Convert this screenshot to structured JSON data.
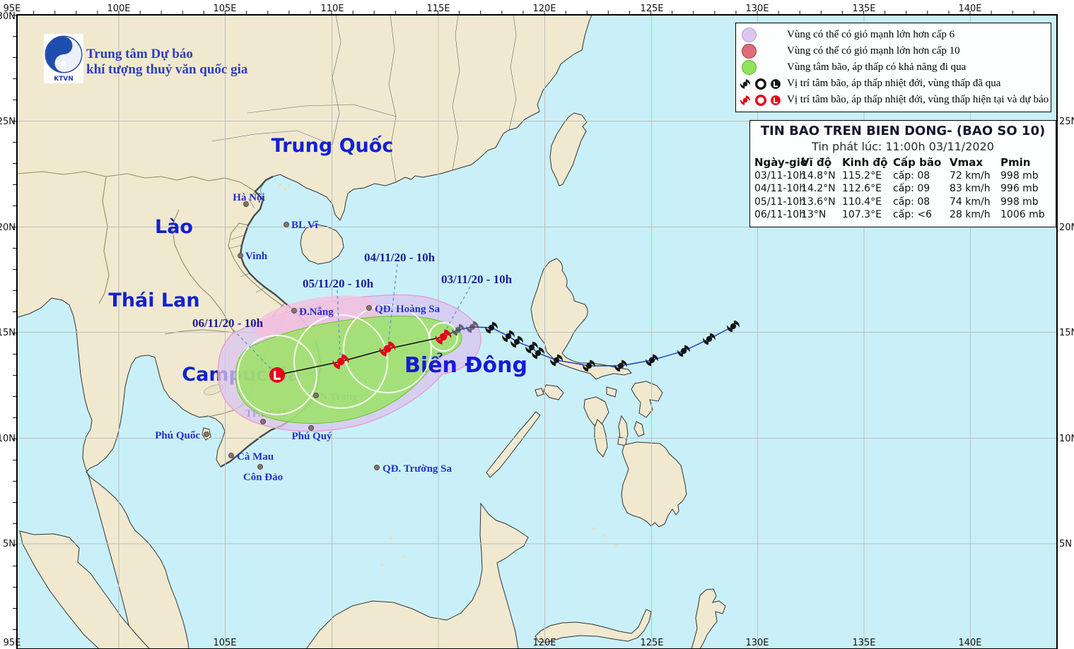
{
  "header": {
    "logo_caption": "KTVN",
    "line1": "Trung tâm Dự báo",
    "line2": "khí tượng thuỷ văn quốc gia"
  },
  "legend": {
    "items": [
      {
        "text": "Vùng có thể có gió mạnh lớn hơn cấp 6"
      },
      {
        "text": "Vùng có thể có gió mạnh lớn hơn cấp 10"
      },
      {
        "text": "Vùng tâm bão, áp thấp có khả năng đi qua"
      },
      {
        "text": "Vị trí tâm bão, áp thấp nhiệt đới, vùng thấp đã qua"
      },
      {
        "text": "Vị trí tâm bão, áp thấp nhiệt đới, vùng thấp hiện tại và dự báo"
      }
    ]
  },
  "bulletin": {
    "title": "TIN BAO TREN BIEN DONG- (BAO SO 10)",
    "issued": "Tin phát lúc: 11:00h 03/11/2020",
    "columns": [
      "Ngày-giờ",
      "Vĩ độ",
      "Kinh độ",
      "Cấp bão",
      "Vmax",
      "Pmin"
    ],
    "rows": [
      [
        "03/11-10h",
        "14.8°N",
        "115.2°E",
        "cấp: 08",
        "72 km/h",
        "998 mb"
      ],
      [
        "04/11-10h",
        "14.2°N",
        "112.6°E",
        "cấp: 09",
        "83 km/h",
        "996 mb"
      ],
      [
        "05/11-10h",
        "13.6°N",
        "110.4°E",
        "cấp: 08",
        "74 km/h",
        "998 mb"
      ],
      [
        "06/11-10h",
        "13°N",
        "107.3°E",
        "cấp: <6",
        "28 km/h",
        "1006 mb"
      ]
    ]
  },
  "map": {
    "countries": {
      "china": "Trung Quốc",
      "laos": "Lào",
      "thailand": "Thái Lan",
      "cambodia": "Campuchia"
    },
    "sea_label": "Biển Đông",
    "cities": {
      "hanoi": "Hà Nội",
      "blv": "BL Vĩ",
      "vinh": "Vinh",
      "danang": "Đ.Nẵng",
      "hoangsa": "QĐ. Hoàng Sa",
      "ntrang": "N.Trang",
      "phuquy": "Phú Quý",
      "tphcm": "TP.HCM",
      "phuquoc": "Phú Quốc",
      "camau": "Cà Mau",
      "condao": "Côn Đảo",
      "truongsa": "QĐ. Trường Sa"
    },
    "forecast_labels": {
      "d03": "03/11/20 - 10h",
      "d04": "04/11/20 - 10h",
      "d05": "05/11/20 - 10h",
      "d06": "06/11/20 - 10h"
    },
    "axis": {
      "top": [
        "95E",
        "100E",
        "105E",
        "110E",
        "115E",
        "120E",
        "125E",
        "130E",
        "135E",
        "140E"
      ],
      "left": [
        "30N",
        "25N",
        "20N",
        "15N",
        "10N",
        "5N"
      ],
      "right": [
        "25N",
        "20N",
        "15N",
        "10N",
        "5N"
      ],
      "bottom": [
        "95E",
        "105E",
        "120E",
        "125E",
        "130E",
        "135E",
        "140E"
      ]
    },
    "colors": {
      "sea": "#c9f0f8",
      "land": "#f0e9d0",
      "cone_wind_cap6": "#d9c4ef",
      "cone_wind_cap10": "#f5bfdf",
      "cone_center_path": "#97e45c",
      "past_symbol": "#141414",
      "current_forecast_symbol": "#e50019",
      "past_track_line": "#1437c8"
    }
  }
}
